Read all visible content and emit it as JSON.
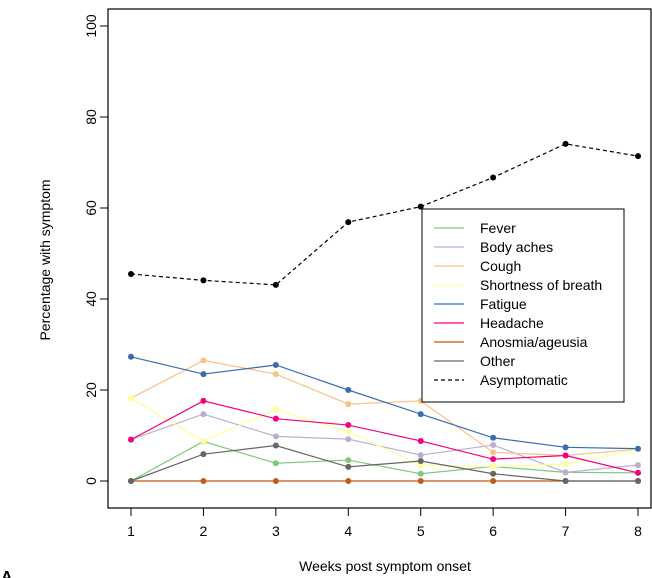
{
  "chart_data": {
    "type": "line",
    "title": "",
    "xlabel": "Weeks post symptom onset",
    "ylabel": "Percentage with symptom",
    "panel_label": "A",
    "x": [
      1,
      2,
      3,
      4,
      5,
      6,
      7,
      8
    ],
    "xlim": [
      1,
      8
    ],
    "ylim": [
      0,
      100
    ],
    "xticks": [
      "1",
      "2",
      "3",
      "4",
      "5",
      "6",
      "7",
      "8"
    ],
    "yticks": [
      "0",
      "20",
      "40",
      "60",
      "80",
      "100"
    ],
    "grid": false,
    "legend_position": "right",
    "series": [
      {
        "name": "Fever",
        "color": "#7fc97f",
        "dashed": false,
        "values": [
          0,
          8.7,
          3.9,
          4.6,
          1.6,
          3.2,
          1.9,
          1.8
        ]
      },
      {
        "name": "Body aches",
        "color": "#beaed4",
        "dashed": false,
        "values": [
          9.1,
          14.7,
          9.8,
          9.2,
          5.7,
          7.9,
          1.9,
          3.5
        ]
      },
      {
        "name": "Cough",
        "color": "#fdc086",
        "dashed": false,
        "values": [
          18.2,
          26.5,
          23.5,
          16.9,
          17.6,
          6.3,
          5.6,
          7.0
        ]
      },
      {
        "name": "Shortness of breath",
        "color": "#ffff99",
        "dashed": false,
        "values": [
          18.2,
          8.8,
          15.7,
          10.8,
          3.5,
          3.2,
          3.7,
          7.0
        ]
      },
      {
        "name": "Fatigue",
        "color": "#386cb0",
        "dashed": false,
        "values": [
          27.3,
          23.5,
          25.5,
          20.0,
          14.7,
          9.5,
          7.4,
          7.1
        ]
      },
      {
        "name": "Headache",
        "color": "#f0027f",
        "dashed": false,
        "values": [
          9.1,
          17.6,
          13.7,
          12.3,
          8.8,
          4.8,
          5.6,
          1.8
        ]
      },
      {
        "name": "Anosmia/ageusia",
        "color": "#bf5b17",
        "dashed": false,
        "values": [
          0,
          0,
          0,
          0,
          0,
          0,
          0,
          0
        ]
      },
      {
        "name": "Other",
        "color": "#666666",
        "dashed": false,
        "values": [
          0,
          5.9,
          7.8,
          3.1,
          4.4,
          1.6,
          0,
          0
        ]
      },
      {
        "name": "Asymptomatic",
        "color": "#000000",
        "dashed": true,
        "values": [
          45.5,
          44.1,
          43.1,
          56.9,
          60.3,
          66.7,
          74.1,
          71.4
        ]
      }
    ]
  }
}
